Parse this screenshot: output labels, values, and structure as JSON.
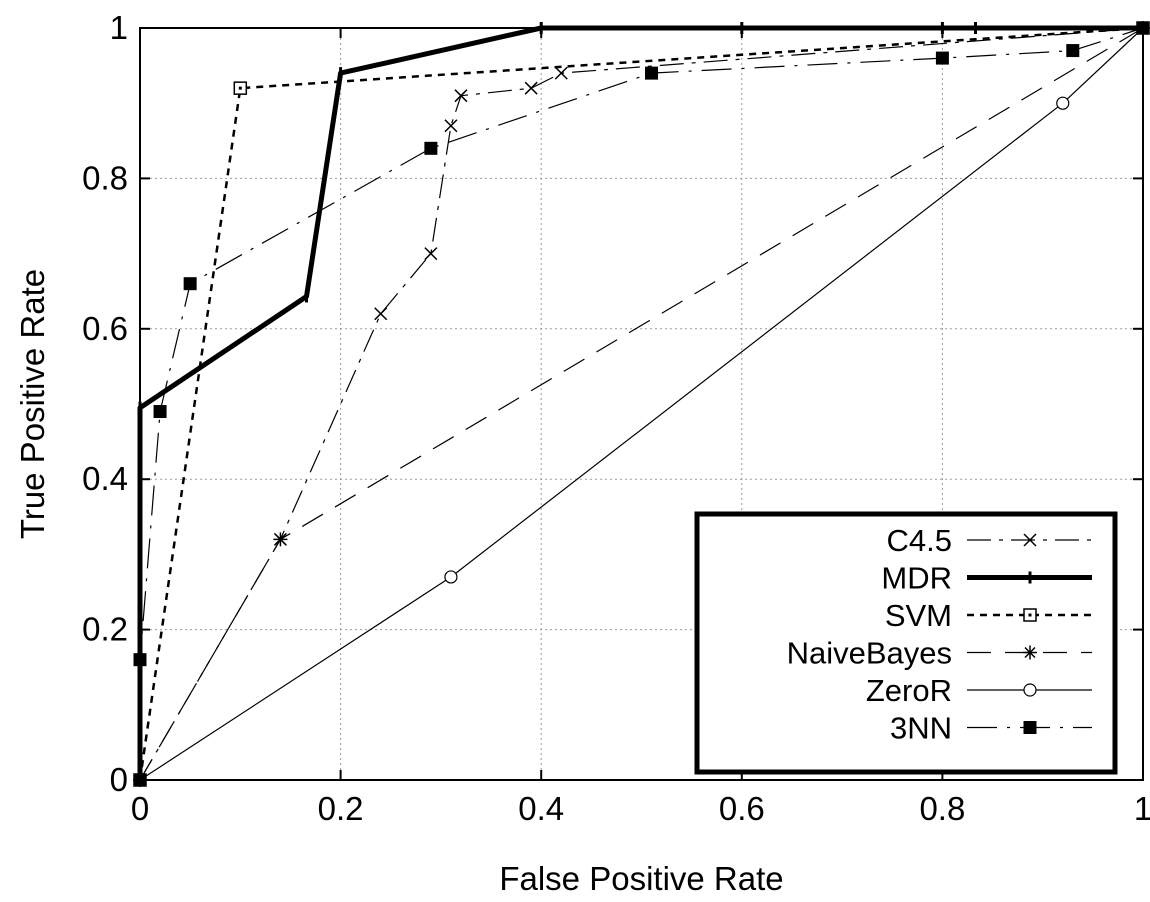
{
  "chart_data": {
    "type": "line",
    "title": "",
    "xlabel": "False Positive Rate",
    "ylabel": "True Positive Rate",
    "xlim": [
      0,
      1
    ],
    "ylim": [
      0,
      1
    ],
    "xticks": [
      0,
      0.2,
      0.4,
      0.6,
      0.8,
      1
    ],
    "yticks": [
      0,
      0.2,
      0.4,
      0.6,
      0.8,
      1
    ],
    "xtick_labels": [
      "0",
      "0.2",
      "0.4",
      "0.6",
      "0.8",
      "1"
    ],
    "ytick_labels": [
      "0",
      "0.2",
      "0.4",
      "0.6",
      "0.8",
      "1"
    ],
    "grid": true,
    "legend_position": "bottom-right",
    "series": [
      {
        "name": "C4.5",
        "marker": "x",
        "line": "long-dash-dot",
        "color": "#000000",
        "points": [
          [
            0,
            0
          ],
          [
            0.14,
            0.32
          ],
          [
            0.24,
            0.62
          ],
          [
            0.29,
            0.7
          ],
          [
            0.31,
            0.87
          ],
          [
            0.32,
            0.91
          ],
          [
            0.39,
            0.92
          ],
          [
            0.42,
            0.94
          ],
          [
            1,
            1
          ]
        ]
      },
      {
        "name": "MDR",
        "marker": "dash",
        "line": "thick-solid",
        "color": "#000000",
        "points": [
          [
            0,
            0
          ],
          [
            0,
            0.16
          ],
          [
            0,
            0.495
          ],
          [
            0.166,
            0.643
          ],
          [
            0.2,
            0.94
          ],
          [
            0.4,
            1
          ],
          [
            0.6,
            1
          ],
          [
            0.8,
            1
          ],
          [
            0.833,
            1
          ],
          [
            1,
            1
          ]
        ]
      },
      {
        "name": "SVM",
        "marker": "dotted-square",
        "line": "short-dash",
        "color": "#000000",
        "points": [
          [
            0,
            0
          ],
          [
            0.1,
            0.92
          ],
          [
            1,
            1
          ]
        ]
      },
      {
        "name": "NaiveBayes",
        "marker": "star",
        "line": "long-dash",
        "color": "#000000",
        "points": [
          [
            0,
            0
          ],
          [
            0.14,
            0.32
          ],
          [
            1,
            1
          ]
        ]
      },
      {
        "name": "ZeroR",
        "marker": "circle",
        "line": "solid-thin",
        "color": "#000000",
        "points": [
          [
            0,
            0
          ],
          [
            0.31,
            0.27
          ],
          [
            0.92,
            0.9
          ],
          [
            1,
            1
          ]
        ]
      },
      {
        "name": "3NN",
        "marker": "filled-square",
        "line": "dash-dot",
        "color": "#000000",
        "points": [
          [
            0,
            0
          ],
          [
            0,
            0.16
          ],
          [
            0.02,
            0.49
          ],
          [
            0.05,
            0.66
          ],
          [
            0.29,
            0.84
          ],
          [
            0.51,
            0.94
          ],
          [
            0.8,
            0.96
          ],
          [
            0.93,
            0.97
          ],
          [
            1,
            1
          ]
        ]
      }
    ]
  }
}
